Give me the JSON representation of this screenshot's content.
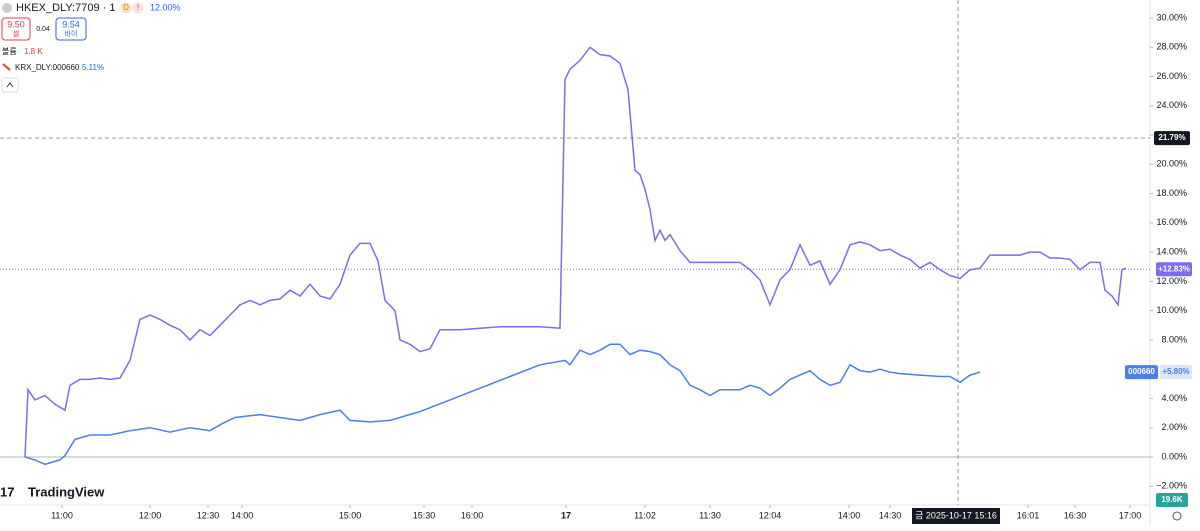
{
  "header": {
    "symbol": "HKEX_DLY:7709 · 1",
    "badge_d": "D",
    "badge_alert": "!",
    "change": "12.00%",
    "sell_price": "9.50",
    "sell_label": "셀",
    "spread": "0.04",
    "buy_price": "9.54",
    "buy_label": "바이",
    "volume_label": "볼륨",
    "volume_value": "1.8 K",
    "compare_symbol": "KRX_DLY:000660",
    "compare_change": "5.11%",
    "logo": "TradingView"
  },
  "chart_data": {
    "type": "line",
    "series": [
      {
        "name": "HKEX_DLY:7709",
        "color": "#7b6cf0",
        "x": [
          2.5,
          2.8,
          3.5,
          4.5,
          5.5,
          6.5,
          7,
          8,
          9,
          10,
          11,
          12,
          13,
          14,
          15,
          16,
          17,
          18,
          19,
          20,
          21,
          22,
          23,
          24,
          25,
          26,
          27,
          28,
          29,
          30,
          31,
          32,
          33,
          34,
          35,
          36,
          37,
          37.8,
          38.5,
          39.5,
          40,
          41,
          42,
          43,
          44,
          46,
          48,
          50,
          52,
          54,
          56,
          56.5,
          57,
          58,
          59,
          60,
          61,
          62,
          62.8,
          63.5,
          64,
          64.5,
          65,
          65.5,
          66,
          66.5,
          67,
          68,
          69,
          70,
          72,
          74,
          75,
          76,
          77,
          78,
          79,
          80,
          81,
          82,
          83,
          84,
          85,
          86,
          87,
          88,
          89,
          90,
          91,
          92,
          93,
          94,
          95,
          96,
          97,
          98,
          99,
          100,
          101,
          102,
          103,
          104,
          105,
          106,
          107,
          108,
          109,
          110,
          110.5,
          111.2,
          111.8,
          112.2,
          112.6
        ],
        "values": [
          0,
          4.6,
          3.9,
          4.2,
          3.6,
          3.2,
          4.9,
          5.3,
          5.3,
          5.4,
          5.3,
          5.4,
          6.6,
          9.4,
          9.7,
          9.4,
          9.0,
          8.7,
          8.0,
          8.7,
          8.3,
          9.0,
          9.7,
          10.4,
          10.7,
          10.4,
          10.7,
          10.8,
          11.4,
          11.0,
          11.8,
          11.0,
          10.8,
          11.8,
          13.8,
          14.6,
          14.6,
          13.4,
          10.7,
          10.0,
          8.0,
          7.7,
          7.2,
          7.4,
          8.7,
          8.7,
          8.8,
          8.9,
          8.9,
          8.9,
          8.8,
          25.8,
          26.5,
          27.1,
          28.0,
          27.5,
          27.4,
          26.9,
          25.1,
          19.6,
          19.3,
          18.3,
          16.9,
          14.8,
          15.5,
          14.8,
          15.2,
          14.1,
          13.3,
          13.3,
          13.3,
          13.3,
          12.8,
          12.1,
          10.4,
          12.1,
          12.8,
          14.5,
          13.1,
          13.4,
          11.8,
          12.8,
          14.5,
          14.7,
          14.5,
          14.1,
          14.2,
          13.8,
          13.5,
          12.9,
          13.3,
          12.8,
          12.4,
          12.2,
          12.8,
          12.9,
          13.8,
          13.8,
          13.8,
          13.8,
          14.0,
          14.0,
          13.6,
          13.6,
          13.5,
          12.8,
          13.3,
          13.3,
          11.4,
          11.0,
          10.4,
          12.8,
          12.9
        ]
      },
      {
        "name": "KRX_DLY:000660",
        "color": "#4a80e6",
        "x": [
          2.5,
          3.5,
          4.5,
          6,
          6.5,
          7.5,
          9,
          11,
          13,
          15,
          17,
          19,
          21,
          22,
          23.5,
          26,
          28,
          30,
          32,
          34,
          35,
          37,
          39,
          42,
          45,
          48,
          51,
          54,
          56.5,
          57,
          58,
          59,
          60,
          61,
          62,
          63,
          64,
          65,
          66,
          67,
          68,
          69,
          70,
          71,
          72,
          74,
          75,
          76,
          77,
          78,
          79,
          80,
          81,
          82,
          83,
          84,
          85,
          86,
          87,
          88,
          89,
          90,
          92,
          94,
          95,
          96,
          97,
          98
        ],
        "values": [
          0,
          -0.2,
          -0.5,
          -0.2,
          0.1,
          1.2,
          1.5,
          1.5,
          1.8,
          2.0,
          1.7,
          2.0,
          1.8,
          2.2,
          2.7,
          2.9,
          2.7,
          2.5,
          2.9,
          3.2,
          2.5,
          2.4,
          2.5,
          3.1,
          3.9,
          4.7,
          5.5,
          6.3,
          6.6,
          6.3,
          7.3,
          7.0,
          7.3,
          7.7,
          7.7,
          7.0,
          7.3,
          7.2,
          7.0,
          6.3,
          5.9,
          4.9,
          4.6,
          4.2,
          4.6,
          4.6,
          4.9,
          4.7,
          4.2,
          4.7,
          5.3,
          5.6,
          5.9,
          5.3,
          4.9,
          5.1,
          6.3,
          5.9,
          5.8,
          6.0,
          5.8,
          5.7,
          5.6,
          5.5,
          5.5,
          5.1,
          5.6,
          5.8
        ]
      }
    ],
    "xlim": [
      0,
      115
    ],
    "ylim": [
      -2.5,
      31.1
    ],
    "xticks": [
      {
        "value": 6.2,
        "label": "11:00"
      },
      {
        "value": 15,
        "label": "12:00"
      },
      {
        "value": 20.8,
        "label": "12:30"
      },
      {
        "value": 24.2,
        "label": "14:00"
      },
      {
        "value": 35,
        "label": "15:00"
      },
      {
        "value": 42.4,
        "label": "15:30"
      },
      {
        "value": 47.2,
        "label": "16:00"
      },
      {
        "value": 56.6,
        "label": "17"
      },
      {
        "value": 64.5,
        "label": "11:02"
      },
      {
        "value": 71,
        "label": "11:30"
      },
      {
        "value": 77,
        "label": "12:04"
      },
      {
        "value": 84.9,
        "label": "14:00"
      },
      {
        "value": 89,
        "label": "14:30"
      },
      {
        "value": 102.8,
        "label": "16:01"
      },
      {
        "value": 107.5,
        "label": "16:30"
      },
      {
        "value": 113,
        "label": "17:00"
      }
    ],
    "yticks": [
      {
        "value": 30,
        "label": "30.00%"
      },
      {
        "value": 28,
        "label": "28.00%"
      },
      {
        "value": 26,
        "label": "26.00%"
      },
      {
        "value": 24,
        "label": "24.00%"
      },
      {
        "value": 22,
        "label": "22.00%"
      },
      {
        "value": 20,
        "label": "20.00%"
      },
      {
        "value": 18,
        "label": "18.00%"
      },
      {
        "value": 16,
        "label": "16.00%"
      },
      {
        "value": 14,
        "label": "14.00%"
      },
      {
        "value": 12,
        "label": "12.00%"
      },
      {
        "value": 10,
        "label": "10.00%"
      },
      {
        "value": 8,
        "label": "8.00%"
      },
      {
        "value": 6,
        "label": "6.00%"
      },
      {
        "value": 4,
        "label": "4.00%"
      },
      {
        "value": 2,
        "label": "2.00%"
      },
      {
        "value": 0,
        "label": "0.00%"
      },
      {
        "value": -2,
        "label": "−2.00%"
      }
    ],
    "crosshair": {
      "x": 95.8,
      "time_label": "금 2025-10-17  15:16",
      "y": {
        "value": 21.79,
        "label": "21.79%"
      }
    },
    "last_labels": [
      {
        "value": 12.83,
        "label": "+12.83%"
      },
      {
        "value": 5.8,
        "label": "+5.80%"
      }
    ],
    "compare_tag": "000660",
    "volume_tag": "19.6K"
  }
}
